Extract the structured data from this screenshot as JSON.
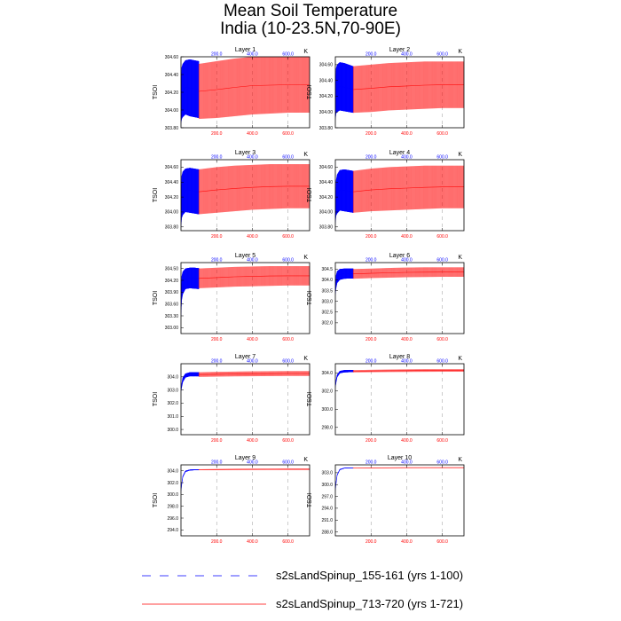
{
  "figure": {
    "title_line1": "Mean Soil Temperature",
    "title_line2": "India (10-23.5N,70-90E)"
  },
  "legend": [
    {
      "label": "s2sLandSpinup_155-161 (yrs 1-100)",
      "color": "#0000ff",
      "dash": "dashed"
    },
    {
      "label": "s2sLandSpinup_713-720 (yrs 1-721)",
      "color": "#ff0000",
      "dash": "solid"
    }
  ],
  "colors": {
    "blue_series": "#0000ff",
    "red_series": "#ff0000",
    "grid": "#999999"
  },
  "chart_data": [
    {
      "type": "line",
      "title": "Layer 1",
      "ylabel": "TSOI",
      "unit": "K",
      "xlim": [
        0,
        721
      ],
      "ylim": [
        303.8,
        304.6
      ],
      "yticks": [
        303.8,
        304.0,
        304.2,
        304.4,
        304.6,
        304.8
      ],
      "ytick_labels": [
        "303.80",
        "304.00",
        "304.20",
        "304.40",
        "304.60",
        "304.80"
      ],
      "xticks": [
        200,
        400,
        600
      ],
      "xtick_labels": [
        "200.0",
        "400.0",
        "600.0"
      ],
      "series": [
        {
          "label": "s2sLandSpinup_155-161 (yrs 1-100)",
          "x": [
            0,
            4,
            10,
            25,
            50,
            75,
            100
          ],
          "ymin": [
            303.85,
            303.9,
            303.92,
            303.95,
            303.93,
            303.92,
            303.91
          ],
          "ymax": [
            304.35,
            304.48,
            304.52,
            304.56,
            304.57,
            304.56,
            304.55
          ]
        },
        {
          "label": "s2sLandSpinup_713-720 (yrs 1-721)",
          "x": [
            100,
            200,
            300,
            400,
            500,
            600,
            721
          ],
          "ymin": [
            303.9,
            303.91,
            303.93,
            303.95,
            303.96,
            303.97,
            303.97
          ],
          "ymax": [
            304.52,
            304.55,
            304.58,
            304.6,
            304.6,
            304.6,
            304.6
          ]
        }
      ]
    },
    {
      "type": "line",
      "title": "Layer 2",
      "ylabel": "TSOI",
      "unit": "K",
      "xlim": [
        0,
        721
      ],
      "ylim": [
        303.8,
        304.7
      ],
      "yticks": [
        303.8,
        304.0,
        304.2,
        304.4,
        304.6
      ],
      "ytick_labels": [
        "303.80",
        "304.00",
        "304.20",
        "304.40",
        "304.60"
      ],
      "xticks": [
        200,
        400,
        600
      ],
      "xtick_labels": [
        "200.0",
        "400.0",
        "600.0"
      ],
      "series": [
        {
          "label": "s2sLandSpinup_155-161 (yrs 1-100)",
          "x": [
            0,
            4,
            10,
            25,
            50,
            75,
            100
          ],
          "ymin": [
            303.9,
            303.98,
            304.0,
            304.02,
            304.01,
            304.0,
            303.99
          ],
          "ymax": [
            304.4,
            304.55,
            304.6,
            304.63,
            304.62,
            304.6,
            304.58
          ]
        },
        {
          "label": "s2sLandSpinup_713-720 (yrs 1-721)",
          "x": [
            100,
            200,
            300,
            400,
            500,
            600,
            721
          ],
          "ymin": [
            303.99,
            304.0,
            304.02,
            304.03,
            304.04,
            304.05,
            304.05
          ],
          "ymax": [
            304.58,
            304.6,
            304.62,
            304.63,
            304.64,
            304.64,
            304.64
          ]
        }
      ]
    },
    {
      "type": "line",
      "title": "Layer 3",
      "ylabel": "TSOI",
      "unit": "K",
      "xlim": [
        0,
        721
      ],
      "ylim": [
        303.75,
        304.7
      ],
      "yticks": [
        303.8,
        304.0,
        304.2,
        304.4,
        304.6
      ],
      "ytick_labels": [
        "303.80",
        "304.00",
        "304.20",
        "304.40",
        "304.60"
      ],
      "xticks": [
        200,
        400,
        600
      ],
      "xtick_labels": [
        "200.0",
        "400.0",
        "600.0"
      ],
      "series": [
        {
          "label": "s2sLandSpinup_155-161 (yrs 1-100)",
          "x": [
            0,
            4,
            10,
            25,
            50,
            75,
            100
          ],
          "ymin": [
            303.8,
            303.92,
            303.96,
            304.0,
            303.99,
            303.98,
            303.97
          ],
          "ymax": [
            304.3,
            304.48,
            304.54,
            304.58,
            304.59,
            304.58,
            304.57
          ]
        },
        {
          "label": "s2sLandSpinup_713-720 (yrs 1-721)",
          "x": [
            100,
            200,
            300,
            400,
            500,
            600,
            721
          ],
          "ymin": [
            303.97,
            303.99,
            304.01,
            304.03,
            304.04,
            304.05,
            304.05
          ],
          "ymax": [
            304.57,
            304.6,
            304.62,
            304.63,
            304.64,
            304.64,
            304.64
          ]
        }
      ]
    },
    {
      "type": "line",
      "title": "Layer 4",
      "ylabel": "TSOI",
      "unit": "K",
      "xlim": [
        0,
        721
      ],
      "ylim": [
        303.75,
        304.7
      ],
      "yticks": [
        303.8,
        304.0,
        304.2,
        304.4,
        304.6
      ],
      "ytick_labels": [
        "303.80",
        "304.00",
        "304.20",
        "304.40",
        "304.60"
      ],
      "xticks": [
        200,
        400,
        600
      ],
      "xtick_labels": [
        "200.0",
        "400.0",
        "600.0"
      ],
      "series": [
        {
          "label": "s2sLandSpinup_155-161 (yrs 1-100)",
          "x": [
            0,
            4,
            10,
            25,
            50,
            75,
            100
          ],
          "ymin": [
            303.85,
            303.95,
            303.98,
            304.02,
            304.01,
            304.0,
            303.99
          ],
          "ymax": [
            304.2,
            304.42,
            304.5,
            304.56,
            304.57,
            304.56,
            304.55
          ]
        },
        {
          "label": "s2sLandSpinup_713-720 (yrs 1-721)",
          "x": [
            100,
            200,
            300,
            400,
            500,
            600,
            721
          ],
          "ymin": [
            303.99,
            304.01,
            304.02,
            304.03,
            304.04,
            304.05,
            304.05
          ],
          "ymax": [
            304.55,
            304.58,
            304.6,
            304.61,
            304.62,
            304.62,
            304.62
          ]
        }
      ]
    },
    {
      "type": "line",
      "title": "Layer 5",
      "ylabel": "TSOI",
      "unit": "K",
      "xlim": [
        0,
        721
      ],
      "ylim": [
        302.85,
        304.65
      ],
      "yticks": [
        303.0,
        303.3,
        303.6,
        303.9,
        304.2,
        304.5
      ],
      "ytick_labels": [
        "303.00",
        "303.30",
        "303.60",
        "303.90",
        "304.20",
        "304.50"
      ],
      "xticks": [
        200,
        400,
        600
      ],
      "xtick_labels": [
        "200.0",
        "400.0",
        "600.0"
      ],
      "series": [
        {
          "label": "s2sLandSpinup_155-161 (yrs 1-100)",
          "x": [
            0,
            4,
            10,
            25,
            50,
            75,
            100
          ],
          "ymin": [
            303.3,
            303.7,
            303.85,
            303.98,
            304.0,
            303.99,
            303.98
          ],
          "ymax": [
            304.0,
            304.3,
            304.42,
            304.5,
            304.52,
            304.52,
            304.51
          ]
        },
        {
          "label": "s2sLandSpinup_713-720 (yrs 1-721)",
          "x": [
            100,
            200,
            300,
            400,
            500,
            600,
            721
          ],
          "ymin": [
            304.0,
            304.02,
            304.04,
            304.05,
            304.06,
            304.07,
            304.07
          ],
          "ymax": [
            304.5,
            304.52,
            304.54,
            304.55,
            304.56,
            304.56,
            304.56
          ]
        }
      ]
    },
    {
      "type": "line",
      "title": "Layer 6",
      "ylabel": "TSOI",
      "unit": "K",
      "xlim": [
        0,
        721
      ],
      "ylim": [
        301.5,
        304.8
      ],
      "yticks": [
        302.0,
        302.5,
        303.0,
        303.5,
        304.0,
        304.5
      ],
      "ytick_labels": [
        "302.0",
        "302.5",
        "303.0",
        "303.5",
        "304.0",
        "304.5"
      ],
      "xticks": [
        200,
        400,
        600
      ],
      "xtick_labels": [
        "200.0",
        "400.0",
        "600.0"
      ],
      "series": [
        {
          "label": "s2sLandSpinup_155-161 (yrs 1-100)",
          "x": [
            0,
            4,
            10,
            25,
            50,
            75,
            100
          ],
          "ymin": [
            303.3,
            303.6,
            303.85,
            304.0,
            304.05,
            304.06,
            304.06
          ],
          "ymax": [
            303.8,
            304.2,
            304.4,
            304.5,
            304.52,
            304.52,
            304.52
          ]
        },
        {
          "label": "s2sLandSpinup_713-720 (yrs 1-721)",
          "x": [
            100,
            200,
            300,
            400,
            500,
            600,
            721
          ],
          "ymin": [
            304.05,
            304.08,
            304.1,
            304.12,
            304.13,
            304.14,
            304.14
          ],
          "ymax": [
            304.5,
            304.52,
            304.55,
            304.57,
            304.58,
            304.58,
            304.58
          ]
        }
      ]
    },
    {
      "type": "line",
      "title": "Layer 7",
      "ylabel": "TSOI",
      "unit": "K",
      "xlim": [
        0,
        721
      ],
      "ylim": [
        299.6,
        305.0
      ],
      "yticks": [
        300.0,
        301.0,
        302.0,
        303.0,
        304.0
      ],
      "ytick_labels": [
        "300.0",
        "301.0",
        "302.0",
        "303.0",
        "304.0"
      ],
      "xticks": [
        200,
        400,
        600
      ],
      "xtick_labels": [
        "200.0",
        "400.0",
        "600.0"
      ],
      "series": [
        {
          "label": "s2sLandSpinup_155-161 (yrs 1-100)",
          "x": [
            0,
            4,
            10,
            25,
            50,
            75,
            100
          ],
          "ymin": [
            302.9,
            303.2,
            303.6,
            303.95,
            304.05,
            304.05,
            304.05
          ],
          "ymax": [
            303.1,
            303.5,
            303.95,
            304.25,
            304.35,
            304.35,
            304.35
          ]
        },
        {
          "label": "s2sLandSpinup_713-720 (yrs 1-721)",
          "x": [
            100,
            200,
            300,
            400,
            500,
            600,
            721
          ],
          "ymin": [
            304.0,
            304.02,
            304.04,
            304.05,
            304.06,
            304.07,
            304.07
          ],
          "ymax": [
            304.35,
            304.38,
            304.4,
            304.42,
            304.43,
            304.44,
            304.44
          ]
        }
      ]
    },
    {
      "type": "line",
      "title": "Layer 8",
      "ylabel": "TSOI",
      "unit": "K",
      "xlim": [
        0,
        721
      ],
      "ylim": [
        297.2,
        305.0
      ],
      "yticks": [
        298.0,
        300.0,
        302.0,
        304.0
      ],
      "ytick_labels": [
        "298.0",
        "300.0",
        "302.0",
        "304.0"
      ],
      "xticks": [
        200,
        400,
        600
      ],
      "xtick_labels": [
        "200.0",
        "400.0",
        "600.0"
      ],
      "series": [
        {
          "label": "s2sLandSpinup_155-161 (yrs 1-100)",
          "x": [
            0,
            4,
            10,
            25,
            50,
            75,
            100
          ],
          "ymin": [
            302.4,
            302.9,
            303.5,
            303.95,
            304.05,
            304.07,
            304.07
          ],
          "ymax": [
            302.6,
            303.2,
            303.8,
            304.2,
            304.3,
            304.32,
            304.32
          ]
        },
        {
          "label": "s2sLandSpinup_713-720 (yrs 1-721)",
          "x": [
            100,
            200,
            300,
            400,
            500,
            600,
            721
          ],
          "ymin": [
            304.05,
            304.07,
            304.09,
            304.1,
            304.11,
            304.12,
            304.12
          ],
          "ymax": [
            304.3,
            304.33,
            304.36,
            304.38,
            304.4,
            304.4,
            304.4
          ]
        }
      ]
    },
    {
      "type": "line",
      "title": "Layer 9",
      "ylabel": "TSOI",
      "unit": "K",
      "xlim": [
        0,
        721
      ],
      "ylim": [
        293.0,
        305.0
      ],
      "yticks": [
        294.0,
        296.0,
        298.0,
        300.0,
        302.0,
        304.0
      ],
      "ytick_labels": [
        "294.0",
        "296.0",
        "298.0",
        "300.0",
        "302.0",
        "304.0"
      ],
      "xticks": [
        200,
        400,
        600
      ],
      "xtick_labels": [
        "200.0",
        "400.0",
        "600.0"
      ],
      "series": [
        {
          "label": "s2sLandSpinup_155-161 (yrs 1-100)",
          "x": [
            0,
            4,
            10,
            25,
            50,
            75,
            100
          ],
          "ymin": [
            300.6,
            301.6,
            302.9,
            303.8,
            304.05,
            304.1,
            304.1
          ],
          "ymax": [
            300.8,
            301.8,
            303.1,
            304.0,
            304.2,
            304.25,
            304.25
          ]
        },
        {
          "label": "s2sLandSpinup_713-720 (yrs 1-721)",
          "x": [
            100,
            200,
            300,
            400,
            500,
            600,
            721
          ],
          "ymin": [
            304.1,
            304.12,
            304.13,
            304.14,
            304.15,
            304.15,
            304.15
          ],
          "ymax": [
            304.25,
            304.3,
            304.33,
            304.35,
            304.36,
            304.37,
            304.37
          ]
        }
      ]
    },
    {
      "type": "line",
      "title": "Layer 10",
      "ylabel": "TSOI",
      "unit": "K",
      "xlim": [
        0,
        721
      ],
      "ylim": [
        287.0,
        305.0
      ],
      "yticks": [
        288.0,
        291.0,
        294.0,
        297.0,
        300.0,
        303.0
      ],
      "ytick_labels": [
        "288.0",
        "291.0",
        "294.0",
        "297.0",
        "300.0",
        "303.0"
      ],
      "xticks": [
        200,
        400,
        600
      ],
      "xtick_labels": [
        "200.0",
        "400.0",
        "600.0"
      ],
      "series": [
        {
          "label": "s2sLandSpinup_155-161 (yrs 1-100)",
          "x": [
            0,
            4,
            10,
            25,
            50,
            75,
            100
          ],
          "ymin": [
            298.6,
            300.2,
            302.3,
            303.7,
            304.1,
            304.15,
            304.15
          ],
          "ymax": [
            298.8,
            300.4,
            302.5,
            303.9,
            304.25,
            304.28,
            304.28
          ]
        },
        {
          "label": "s2sLandSpinup_713-720 (yrs 1-721)",
          "x": [
            100,
            200,
            300,
            400,
            500,
            600,
            721
          ],
          "ymin": [
            304.15,
            304.17,
            304.18,
            304.19,
            304.2,
            304.2,
            304.2
          ],
          "ymax": [
            304.28,
            304.32,
            304.34,
            304.36,
            304.37,
            304.38,
            304.38
          ]
        }
      ]
    }
  ]
}
